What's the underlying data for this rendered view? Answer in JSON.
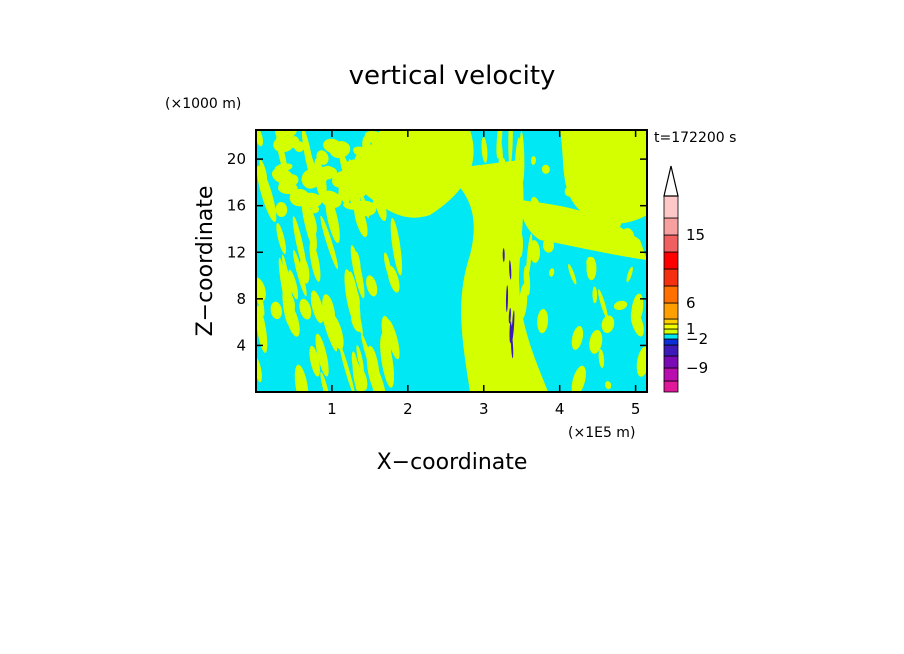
{
  "chart_data": {
    "type": "heatmap",
    "title": "vertical velocity",
    "xlabel": "X−coordinate",
    "ylabel": "Z−coordinate",
    "x_unit": "(×1E5 m)",
    "y_unit": "(×1000 m)",
    "time_label": "t=172200 s",
    "xlim": [
      0,
      5.15
    ],
    "ylim": [
      0,
      22.5
    ],
    "x_ticks": [
      1,
      2,
      3,
      4,
      5
    ],
    "y_ticks": [
      4,
      8,
      12,
      16,
      20
    ],
    "colorbar": {
      "levels": [
        {
          "color": "#e0189a"
        },
        {
          "color": "#b80fae"
        },
        {
          "color": "#7a0ab4"
        },
        {
          "color": "#3c1ab8"
        },
        {
          "color": "#0b30d8"
        },
        {
          "color": "#00e8f4"
        },
        {
          "color": "#d4ff00"
        },
        {
          "color": "#f4ff00"
        },
        {
          "color": "#ffd000"
        },
        {
          "color": "#ffa000"
        },
        {
          "color": "#ff7000"
        },
        {
          "color": "#f43010"
        },
        {
          "color": "#ff0000"
        },
        {
          "color": "#f06060"
        },
        {
          "color": "#f8a0a0"
        },
        {
          "color": "#ffc8c8"
        }
      ],
      "tick_labels": [
        "−9",
        "−2",
        "1",
        "6",
        "15"
      ],
      "extend": "max"
    },
    "dominant_colors": {
      "negative": "#00e8f4",
      "positive": "#d4ff00",
      "strong_negative": "#3c1ab8"
    }
  }
}
